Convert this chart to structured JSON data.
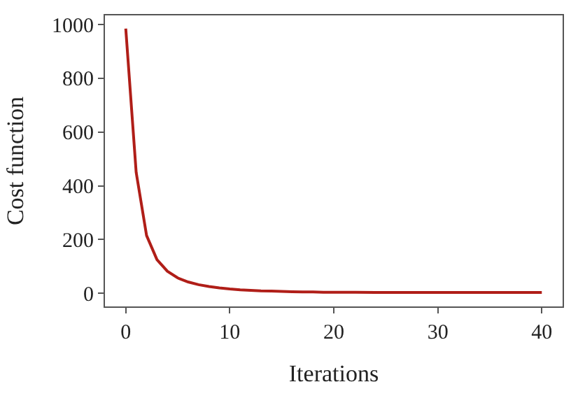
{
  "chart_data": {
    "type": "line",
    "xlabel": "Iterations",
    "ylabel": "Cost function",
    "x": [
      0,
      1,
      2,
      3,
      4,
      5,
      6,
      7,
      8,
      9,
      10,
      11,
      12,
      13,
      14,
      15,
      16,
      17,
      18,
      19,
      20,
      22,
      24,
      26,
      28,
      30,
      32,
      34,
      36,
      38,
      40
    ],
    "series": [
      {
        "color": "#b01e18",
        "values": [
          985,
          450,
          215,
          125,
          82,
          57,
          42,
          32,
          25,
          20,
          16,
          13,
          11,
          9,
          8,
          7,
          6,
          5,
          5,
          4,
          4,
          4,
          3,
          3,
          3,
          3,
          3,
          3,
          3,
          3,
          3
        ]
      }
    ],
    "xlim": [
      -2,
      42
    ],
    "ylim": [
      -49,
      1034
    ],
    "xticks": [
      0,
      10,
      20,
      30,
      40
    ],
    "yticks": [
      0,
      200,
      400,
      600,
      800,
      1000
    ],
    "marker": "none",
    "line_style": "solid"
  }
}
